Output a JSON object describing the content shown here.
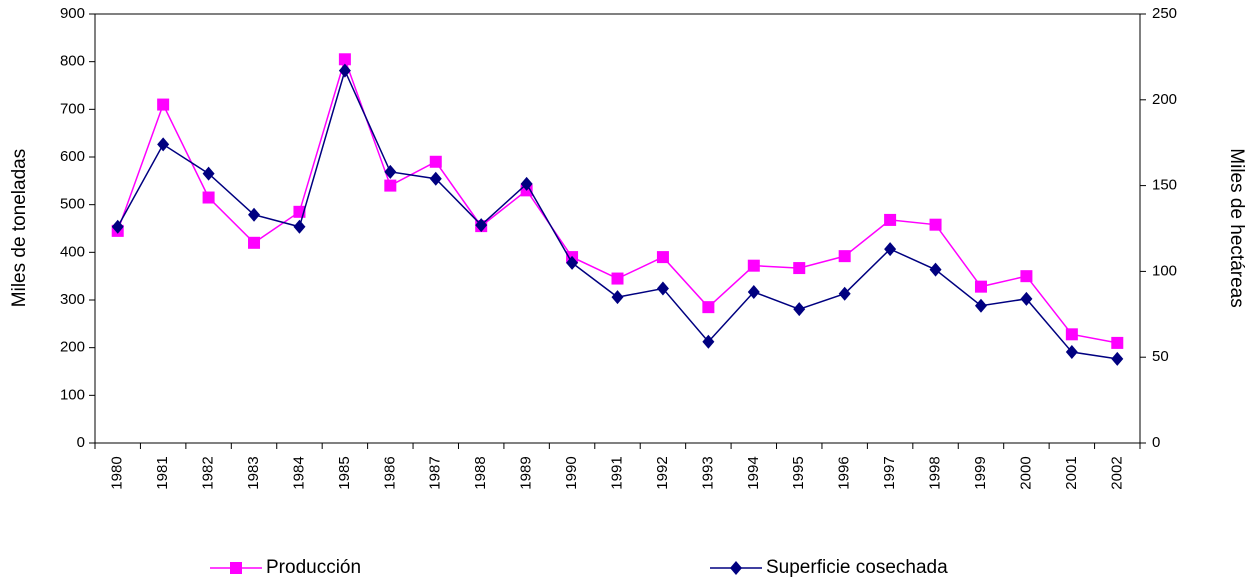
{
  "chart_data": {
    "type": "line",
    "categories": [
      "1980",
      "1981",
      "1982",
      "1983",
      "1984",
      "1985",
      "1986",
      "1987",
      "1988",
      "1989",
      "1990",
      "1991",
      "1992",
      "1993",
      "1994",
      "1995",
      "1996",
      "1997",
      "1998",
      "1999",
      "2000",
      "2001",
      "2002"
    ],
    "series": [
      {
        "name": "Producción",
        "color": "#ff00ff",
        "marker": "square",
        "values": [
          445,
          710,
          515,
          420,
          485,
          805,
          540,
          590,
          455,
          530,
          390,
          345,
          390,
          285,
          372,
          367,
          392,
          468,
          458,
          328,
          350,
          228,
          210
        ]
      },
      {
        "name": "Superficie cosechada",
        "color": "#000080",
        "marker": "diamond",
        "axis": "y2",
        "values": [
          126,
          174,
          157,
          133,
          126,
          217,
          158,
          154,
          127,
          151,
          105,
          85,
          90,
          59,
          88,
          78,
          87,
          113,
          101,
          80,
          84,
          53,
          49
        ]
      }
    ],
    "ylabel": "Miles de toneladas",
    "y2label": "Miles de hectáreas",
    "ylim": [
      0,
      900
    ],
    "yticks": [
      0,
      100,
      200,
      300,
      400,
      500,
      600,
      700,
      800,
      900
    ],
    "y2lim": [
      0,
      250
    ],
    "y2ticks": [
      0,
      50,
      100,
      150,
      200,
      250
    ],
    "grid": false,
    "legend": "bottom"
  }
}
